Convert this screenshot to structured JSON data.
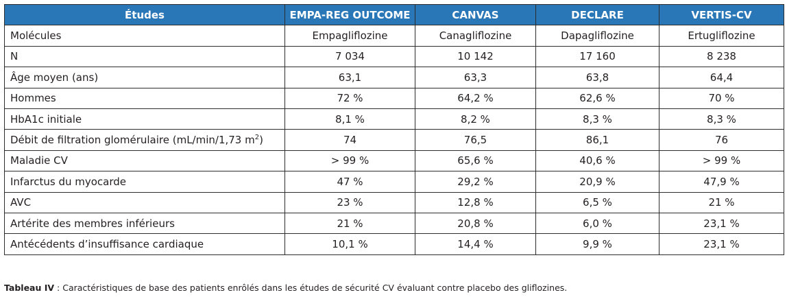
{
  "table": {
    "headers": [
      "Études",
      "EMPA-REG OUTCOME",
      "CANVAS",
      "DECLARE",
      "VERTIS-CV"
    ],
    "rows": [
      {
        "label": "Molécules",
        "values": [
          "Empagliflozine",
          "Canagliflozine",
          "Dapagliflozine",
          "Ertugliflozine"
        ]
      },
      {
        "label": "N",
        "values": [
          "7 034",
          "10 142",
          "17 160",
          "8 238"
        ]
      },
      {
        "label": "Âge moyen (ans)",
        "values": [
          "63,1",
          "63,3",
          "63,8",
          "64,4"
        ]
      },
      {
        "label": "Hommes",
        "values": [
          "72 %",
          "64,2 %",
          "62,6 %",
          "70 %"
        ]
      },
      {
        "label": "HbA1c initiale",
        "values": [
          "8,1 %",
          "8,2 %",
          "8,3 %",
          "8,3 %"
        ]
      },
      {
        "label": "Débit de filtration glomérulaire (mL/min/1,73 m",
        "label_sup": "2",
        "label_suffix": ")",
        "values": [
          "74",
          "76,5",
          "86,1",
          "76"
        ]
      },
      {
        "label": "Maladie CV",
        "values": [
          "> 99 %",
          "65,6 %",
          "40,6 %",
          "> 99 %"
        ]
      },
      {
        "label": "Infarctus du myocarde",
        "values": [
          "47 %",
          "29,2 %",
          "20,9 %",
          "47,9 %"
        ]
      },
      {
        "label": "AVC",
        "values": [
          "23 %",
          "12,8 %",
          "6,5 %",
          "21 %"
        ]
      },
      {
        "label": "Artérite des membres inférieurs",
        "values": [
          "21 %",
          "20,8 %",
          "6,0 %",
          "23,1 %"
        ]
      },
      {
        "label": "Antécédents d’insuffisance cardiaque",
        "values": [
          "10,1 %",
          "14,4 %",
          "9,9 %",
          "23,1 %"
        ]
      }
    ]
  },
  "caption": {
    "label": "Tableau IV",
    "text": " : Caractéristiques de base des patients enrôlés dans les études de sécurité CV évaluant contre placebo des gliflozines."
  },
  "colors": {
    "header_bg": "#2a77b8",
    "header_text": "#ffffff",
    "border": "#2b2b2b",
    "text": "#231f20"
  }
}
